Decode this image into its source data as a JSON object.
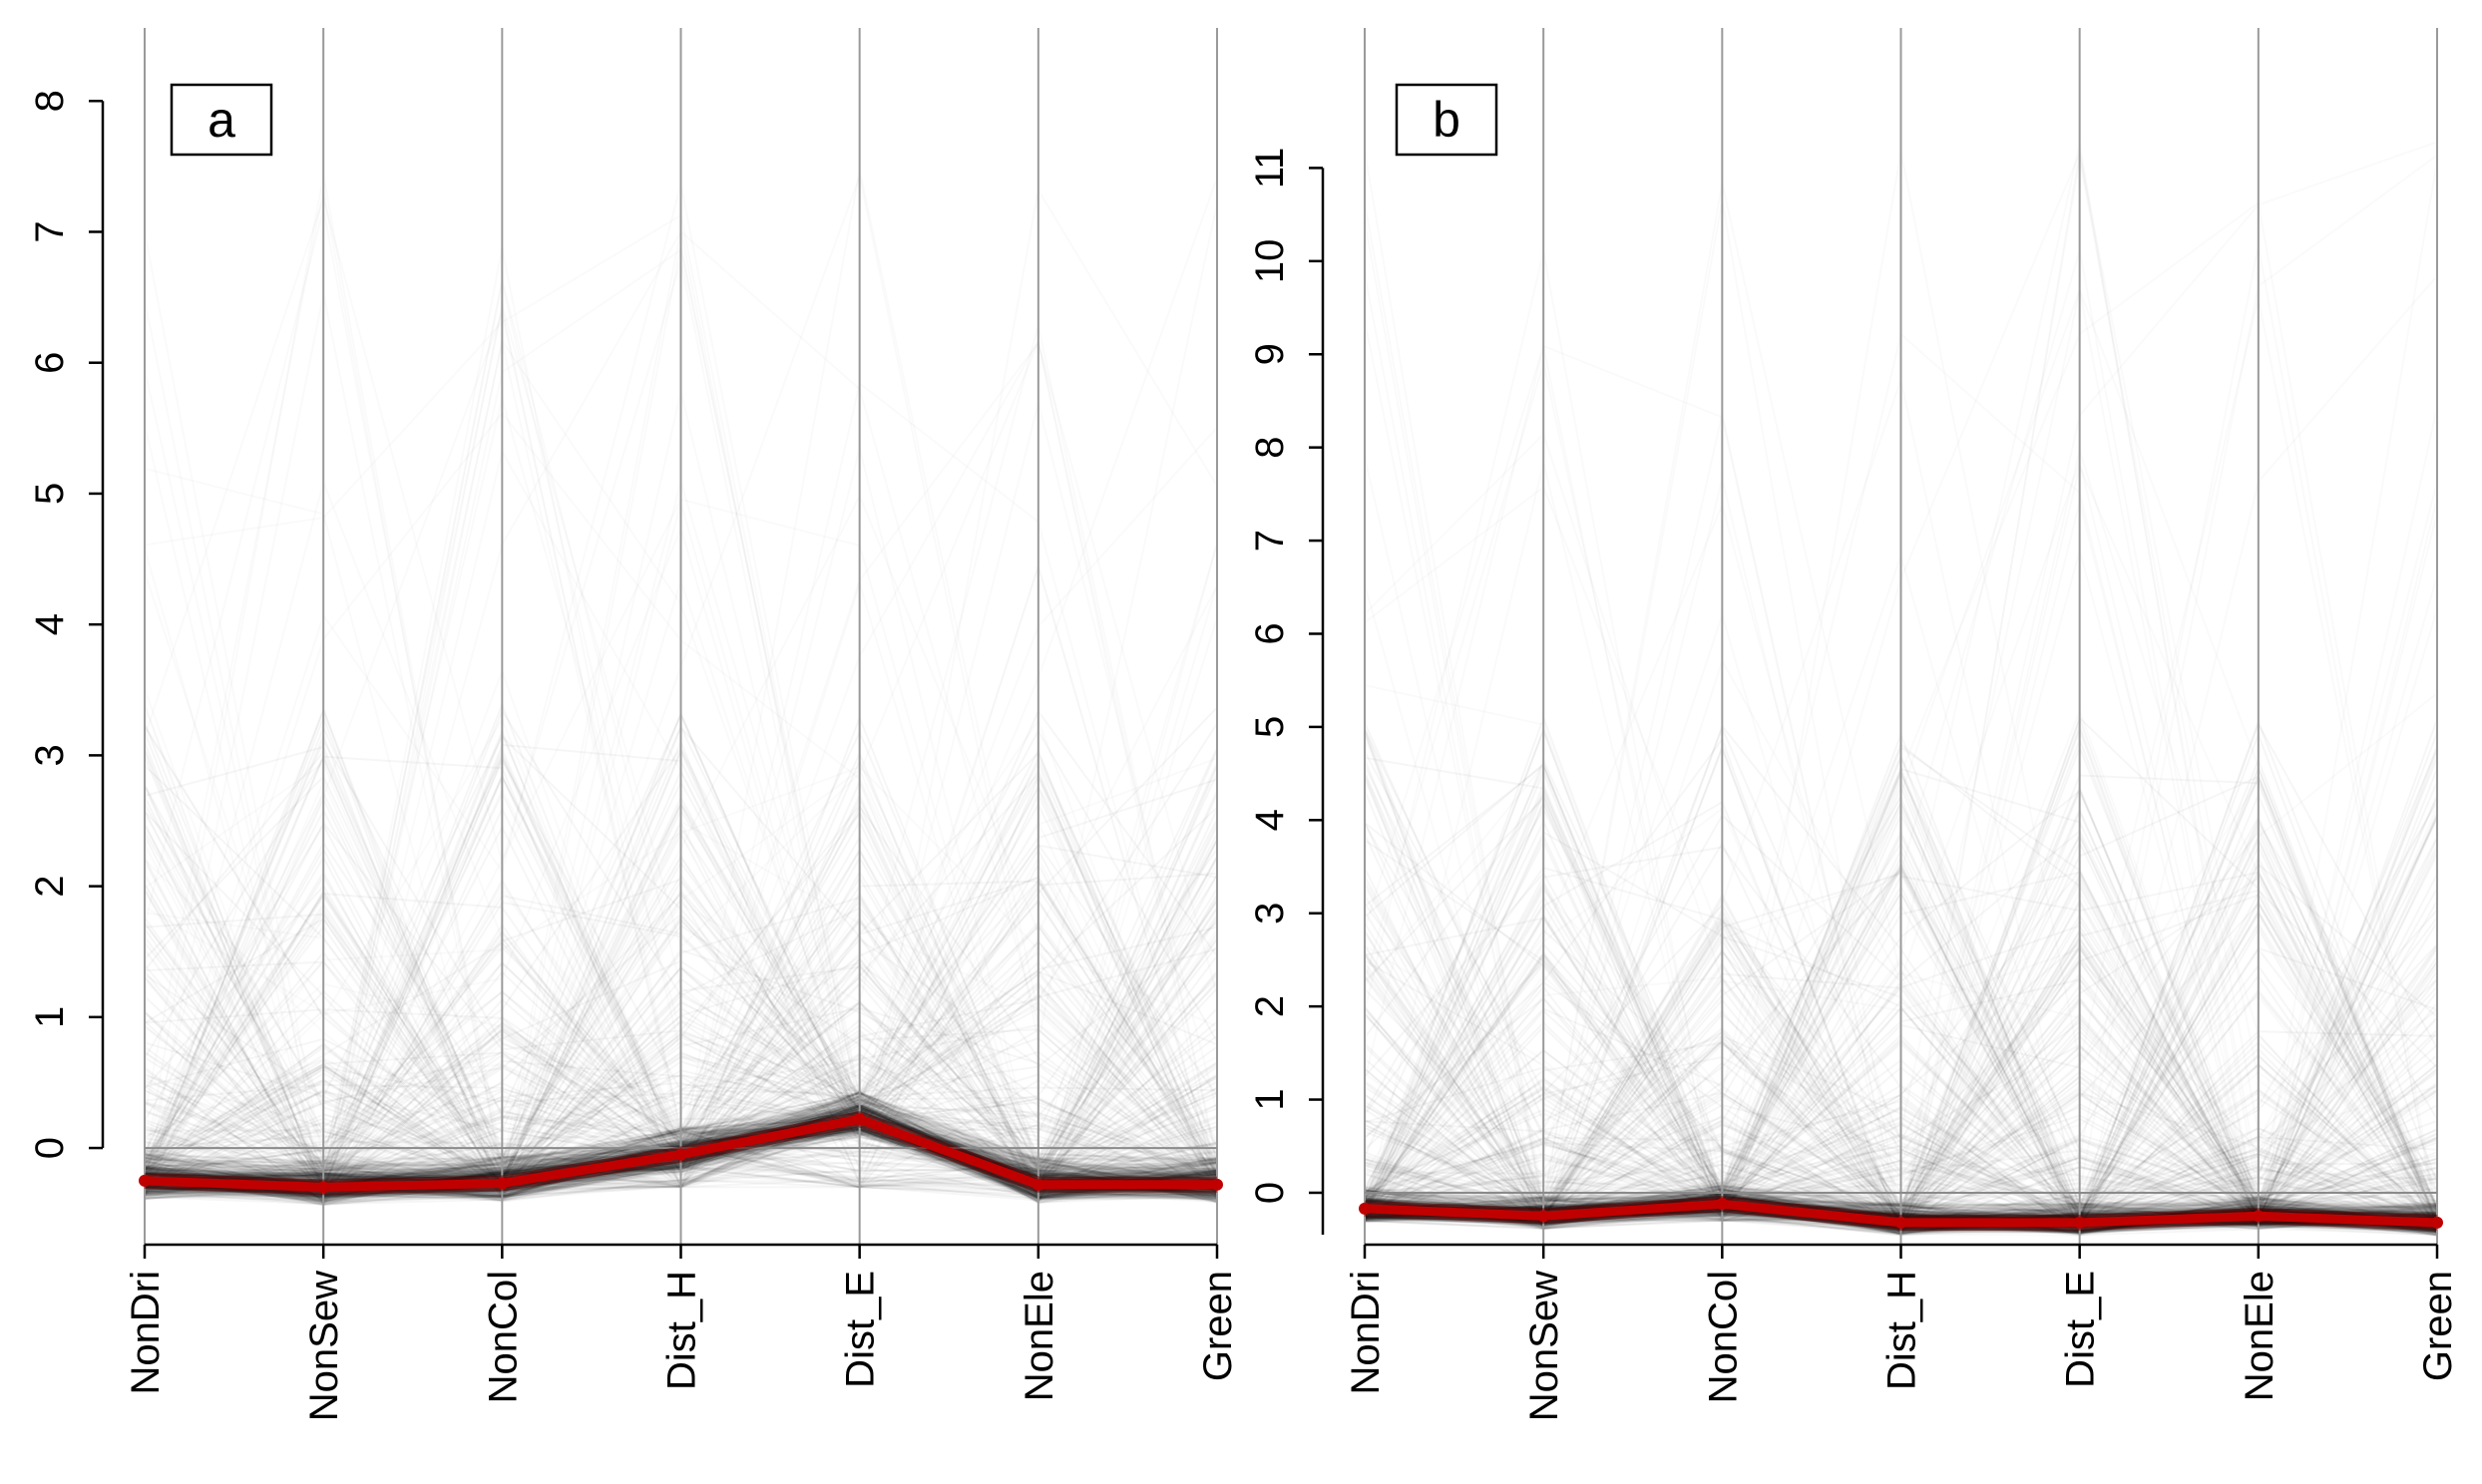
{
  "chart_data": [
    {
      "type": "parallel-coordinates",
      "panel_label": "a",
      "axes": [
        "NonDri",
        "NonSew",
        "NonCol",
        "Dist_H",
        "Dist_E",
        "NonEle",
        "Green"
      ],
      "ylim": [
        -0.35,
        8.2
      ],
      "yticks": [
        0,
        1,
        2,
        3,
        4,
        5,
        6,
        7,
        8
      ],
      "reference_line": 0,
      "highlight_color": "#c00000",
      "background_line_color": "#000000",
      "highlight_series": {
        "values": [
          -0.25,
          -0.3,
          -0.27,
          -0.05,
          0.22,
          -0.28,
          -0.28
        ]
      }
    },
    {
      "type": "parallel-coordinates",
      "panel_label": "b",
      "axes": [
        "NonDri",
        "NonSew",
        "NonCol",
        "Dist_H",
        "Dist_E",
        "NonEle",
        "Green"
      ],
      "ylim": [
        -0.45,
        12.0
      ],
      "yticks": [
        0,
        1,
        2,
        3,
        4,
        5,
        6,
        7,
        8,
        9,
        10,
        11
      ],
      "reference_line": 0,
      "highlight_color": "#c00000",
      "background_line_color": "#000000",
      "highlight_series": {
        "values": [
          -0.17,
          -0.25,
          -0.12,
          -0.32,
          -0.32,
          -0.25,
          -0.32
        ]
      }
    }
  ]
}
